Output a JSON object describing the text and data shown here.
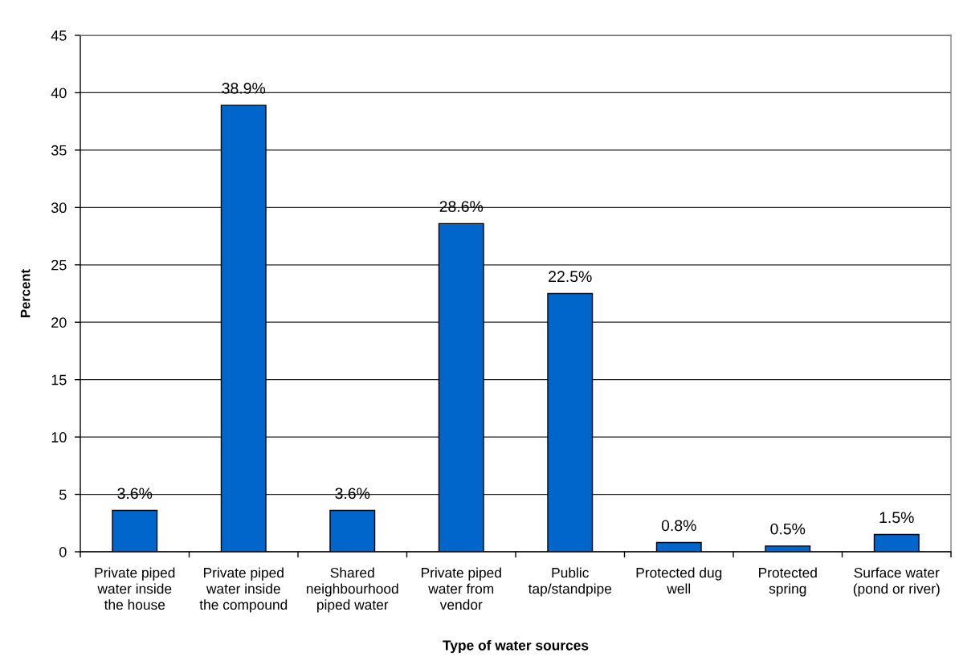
{
  "chart_data": {
    "type": "bar",
    "xlabel": "Type of water sources",
    "ylabel": "Percent",
    "categories": [
      "Private piped\nwater inside\nthe house",
      "Private piped\nwater inside\nthe compound",
      "Shared\nneighbourhood\npiped water",
      "Private piped\nwater from\nvendor",
      "Public\ntap/standpipe",
      "Protected dug\nwell",
      "Protected\nspring",
      "Surface water\n(pond or river)"
    ],
    "values": [
      3.6,
      38.9,
      3.6,
      28.6,
      22.5,
      0.8,
      0.5,
      1.5
    ],
    "value_labels": [
      "3.6%",
      "38.9%",
      "3.6%",
      "28.6%",
      "22.5%",
      "0.8%",
      "0.5%",
      "1.5%"
    ],
    "color": "#0066cc",
    "ylim": [
      0,
      45
    ],
    "yticks": [
      0,
      5,
      10,
      15,
      20,
      25,
      30,
      35,
      40,
      45
    ],
    "grid": "y"
  }
}
